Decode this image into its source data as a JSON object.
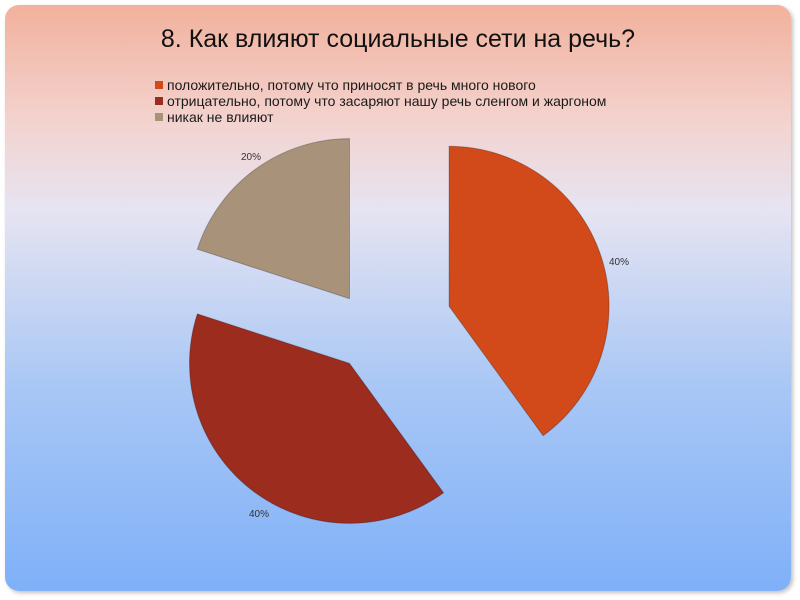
{
  "chart_data": {
    "type": "pie",
    "title": "8. Как влияют социальные сети на речь?",
    "series": [
      {
        "name": "положительно, потому что приносят в речь много нового",
        "value": 40,
        "label": "40%",
        "color": "#d24a1a"
      },
      {
        "name": "отрицательно, потому что засаряют нашу речь сленгом и жаргоном",
        "value": 40,
        "label": "40%",
        "color": "#9c2c1e"
      },
      {
        "name": "никак не влияют",
        "value": 20,
        "label": "20%",
        "color": "#a8937a"
      }
    ],
    "legend_position": "top",
    "exploded": true
  }
}
